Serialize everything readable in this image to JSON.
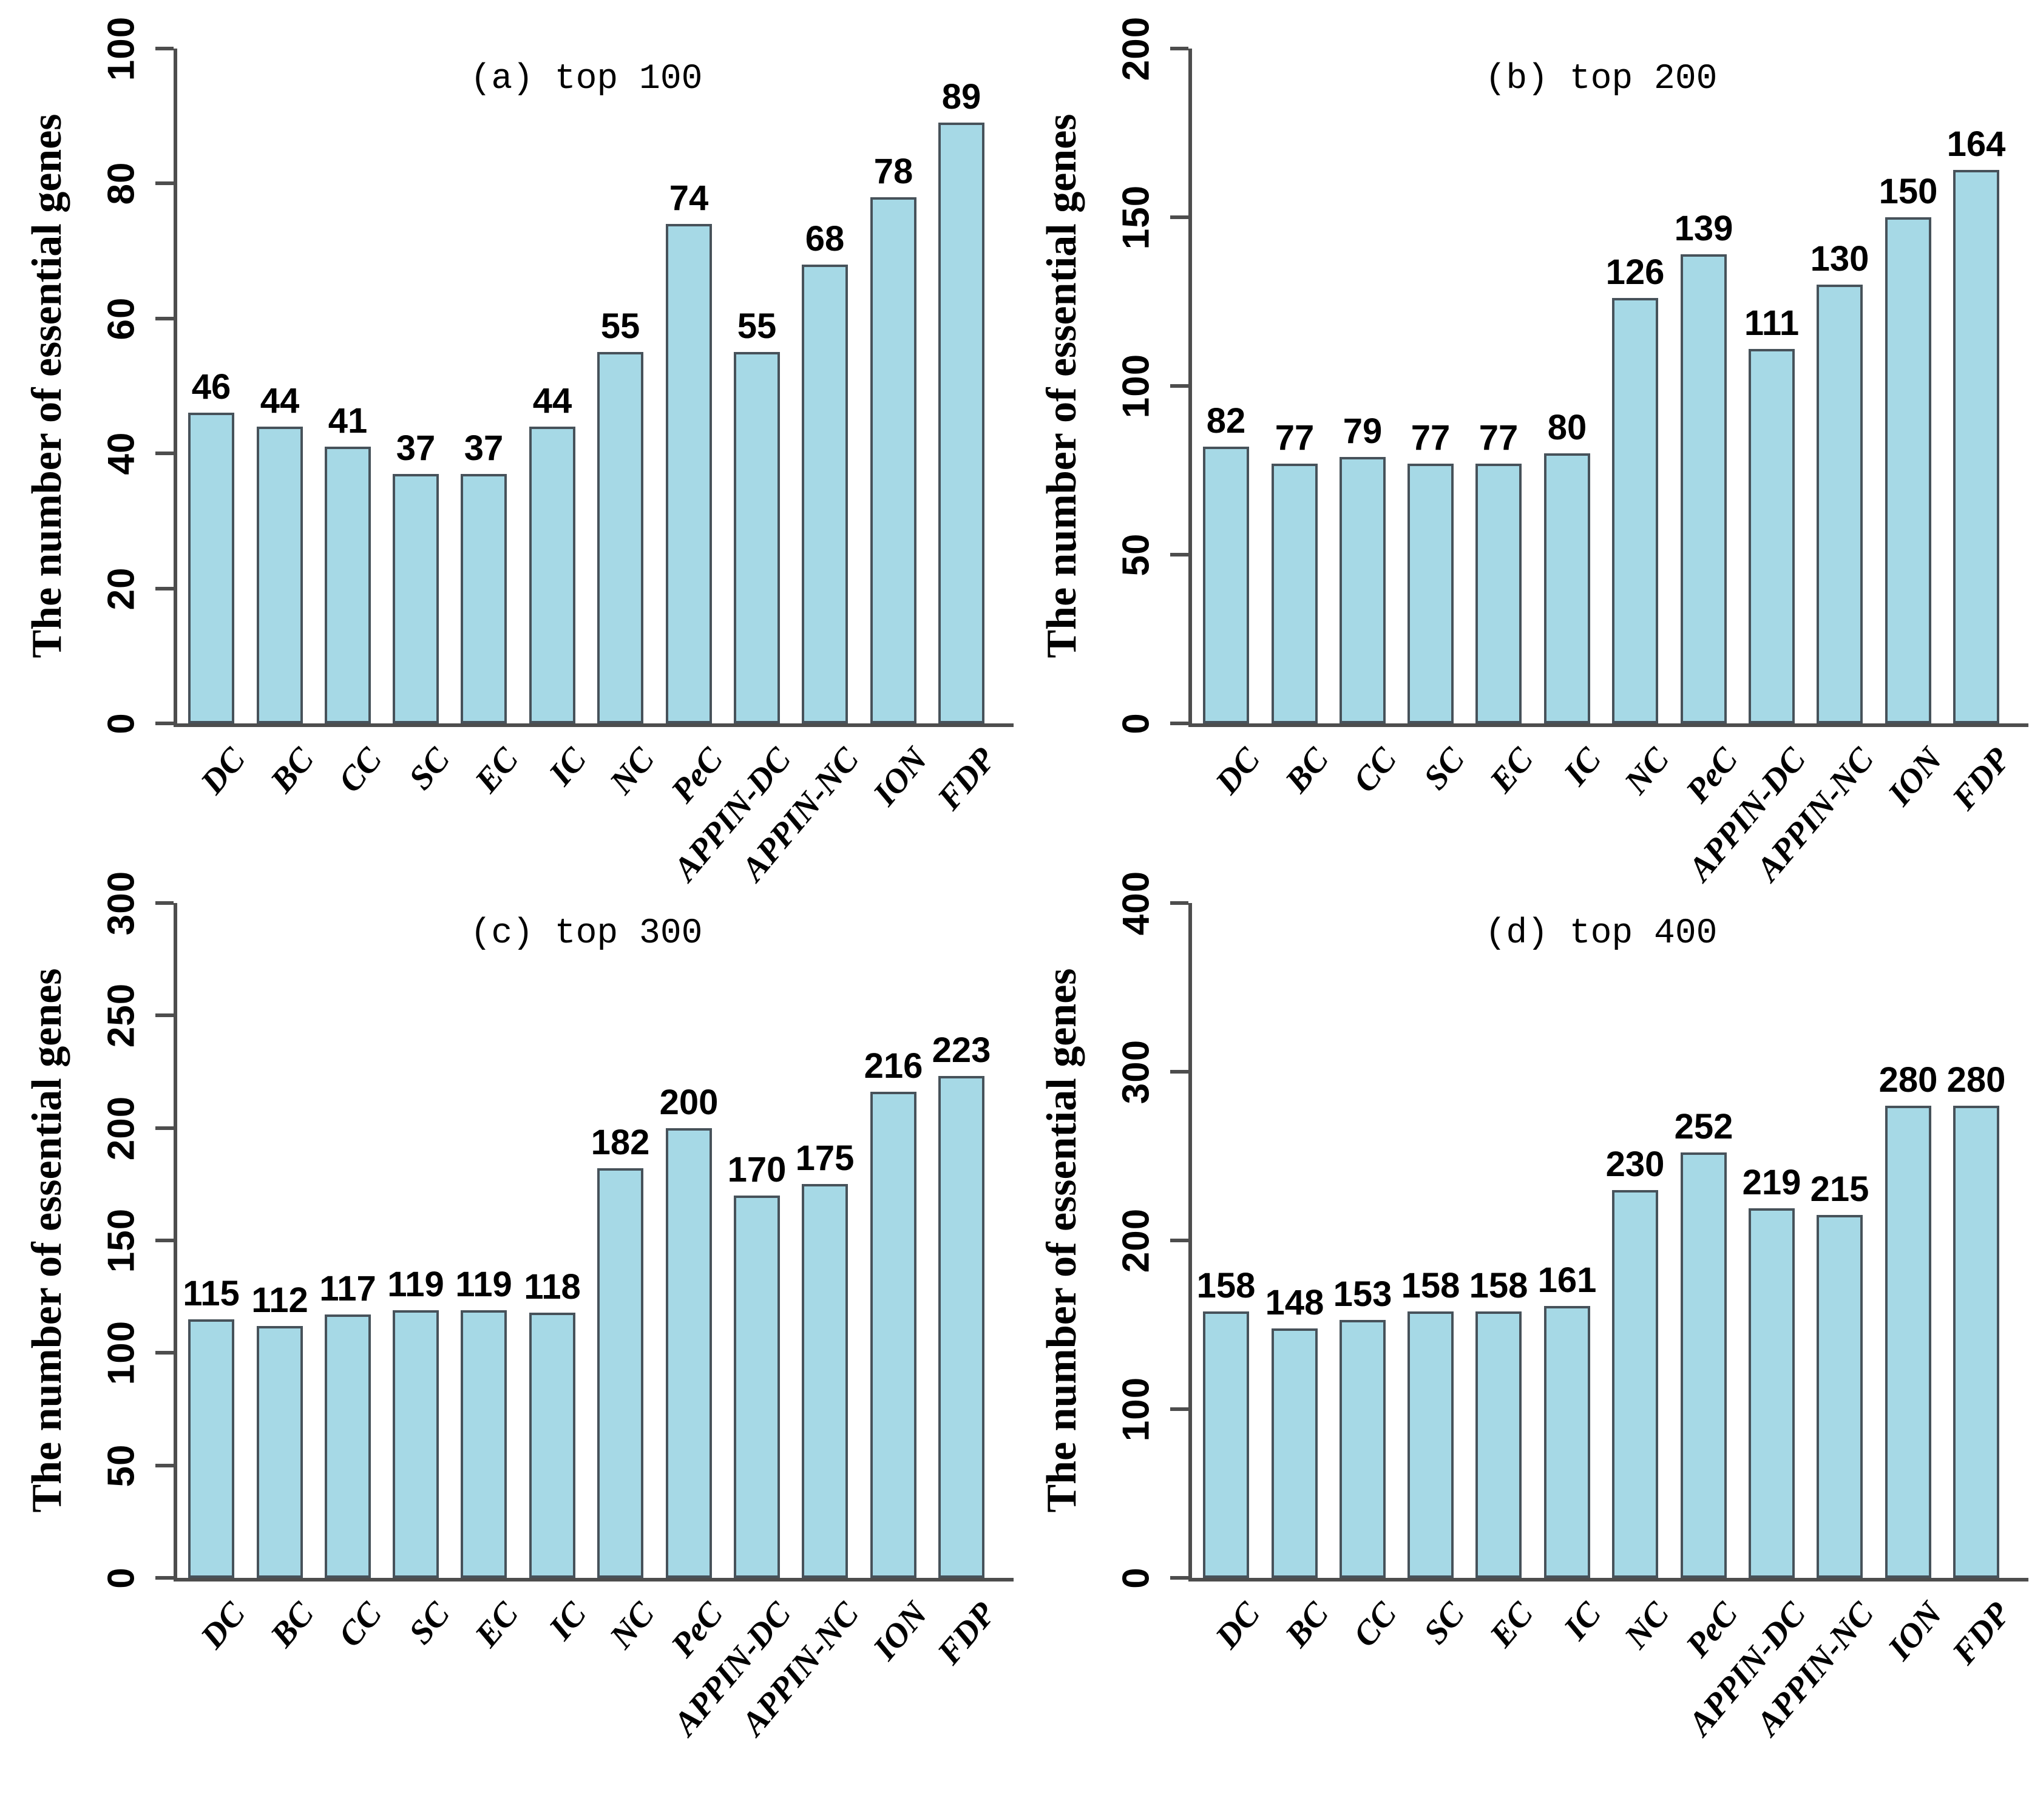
{
  "style": {
    "bar_fill": "#a6d9e6",
    "bar_border": "#47525a",
    "axis_color": "#4d4d4d",
    "text_color": "#000000",
    "background": "#ffffff"
  },
  "ylabel": "The number of essential genes",
  "categories": [
    "DC",
    "BC",
    "CC",
    "SC",
    "EC",
    "IC",
    "NC",
    "PeC",
    "APPIN-DC",
    "APPIN-NC",
    "ION",
    "FDP"
  ],
  "chart_data": [
    {
      "type": "bar",
      "panel": "a",
      "title": "(a) top 100",
      "categories": [
        "DC",
        "BC",
        "CC",
        "SC",
        "EC",
        "IC",
        "NC",
        "PeC",
        "APPIN-DC",
        "APPIN-NC",
        "ION",
        "FDP"
      ],
      "values": [
        46,
        44,
        41,
        37,
        37,
        44,
        55,
        74,
        55,
        68,
        78,
        89
      ],
      "xlabel": "",
      "ylabel": "The number of essential genes",
      "ylim": [
        0,
        100
      ],
      "yticks": [
        0,
        20,
        40,
        60,
        80,
        100
      ],
      "grid": false,
      "legend": null
    },
    {
      "type": "bar",
      "panel": "b",
      "title": "(b) top 200",
      "categories": [
        "DC",
        "BC",
        "CC",
        "SC",
        "EC",
        "IC",
        "NC",
        "PeC",
        "APPIN-DC",
        "APPIN-NC",
        "ION",
        "FDP"
      ],
      "values": [
        82,
        77,
        79,
        77,
        77,
        80,
        126,
        139,
        111,
        130,
        150,
        164
      ],
      "xlabel": "",
      "ylabel": "The number of essential genes",
      "ylim": [
        0,
        200
      ],
      "yticks": [
        0,
        50,
        100,
        150,
        200
      ],
      "grid": false,
      "legend": null
    },
    {
      "type": "bar",
      "panel": "c",
      "title": "(c) top 300",
      "categories": [
        "DC",
        "BC",
        "CC",
        "SC",
        "EC",
        "IC",
        "NC",
        "PeC",
        "APPIN-DC",
        "APPIN-NC",
        "ION",
        "FDP"
      ],
      "values": [
        115,
        112,
        117,
        119,
        119,
        118,
        182,
        200,
        170,
        175,
        216,
        223
      ],
      "xlabel": "",
      "ylabel": "The number of essential genes",
      "ylim": [
        0,
        300
      ],
      "yticks": [
        0,
        50,
        100,
        150,
        200,
        250,
        300
      ],
      "grid": false,
      "legend": null
    },
    {
      "type": "bar",
      "panel": "d",
      "title": "(d) top 400",
      "categories": [
        "DC",
        "BC",
        "CC",
        "SC",
        "EC",
        "IC",
        "NC",
        "PeC",
        "APPIN-DC",
        "APPIN-NC",
        "ION",
        "FDP"
      ],
      "values": [
        158,
        148,
        153,
        158,
        158,
        161,
        230,
        252,
        219,
        215,
        280,
        280
      ],
      "xlabel": "",
      "ylabel": "The number of essential genes",
      "ylim": [
        0,
        400
      ],
      "yticks": [
        0,
        100,
        200,
        300,
        400
      ],
      "grid": false,
      "legend": null
    }
  ]
}
